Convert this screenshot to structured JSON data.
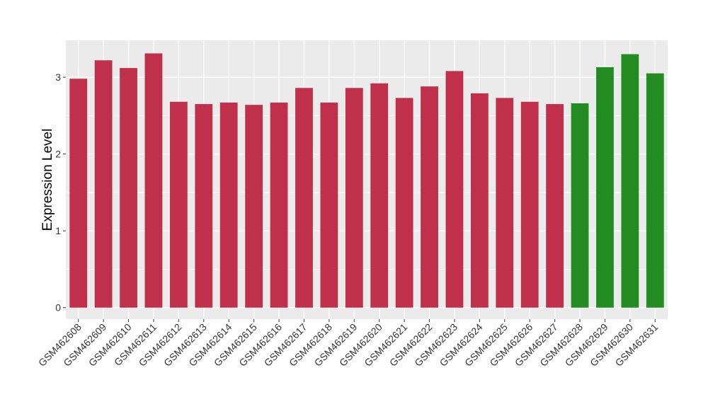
{
  "chart_data": {
    "type": "bar",
    "ylabel": "Expression Level",
    "xlabel": "",
    "title": "",
    "ylim": [
      -0.15,
      3.48
    ],
    "yticks": [
      0,
      1,
      2,
      3
    ],
    "grid": true,
    "categories": [
      "GSM462608",
      "GSM462609",
      "GSM462610",
      "GSM462611",
      "GSM462612",
      "GSM462613",
      "GSM462614",
      "GSM462615",
      "GSM462616",
      "GSM462617",
      "GSM462618",
      "GSM462619",
      "GSM462620",
      "GSM462621",
      "GSM462622",
      "GSM462623",
      "GSM462624",
      "GSM462625",
      "GSM462626",
      "GSM462627",
      "GSM462628",
      "GSM462629",
      "GSM462630",
      "GSM462631"
    ],
    "values": [
      2.98,
      3.22,
      3.12,
      3.31,
      2.68,
      2.65,
      2.67,
      2.64,
      2.67,
      2.86,
      2.67,
      2.86,
      2.92,
      2.73,
      2.88,
      3.08,
      2.79,
      2.73,
      2.68,
      2.65,
      2.66,
      3.13,
      3.3,
      3.05
    ],
    "group_colors": [
      "#c0304a",
      "#c0304a",
      "#c0304a",
      "#c0304a",
      "#c0304a",
      "#c0304a",
      "#c0304a",
      "#c0304a",
      "#c0304a",
      "#c0304a",
      "#c0304a",
      "#c0304a",
      "#c0304a",
      "#c0304a",
      "#c0304a",
      "#c0304a",
      "#c0304a",
      "#c0304a",
      "#c0304a",
      "#c0304a",
      "#228b22",
      "#228b22",
      "#228b22",
      "#228b22"
    ],
    "panel_color": "#ebebeb",
    "grid_color": "#ffffff"
  }
}
